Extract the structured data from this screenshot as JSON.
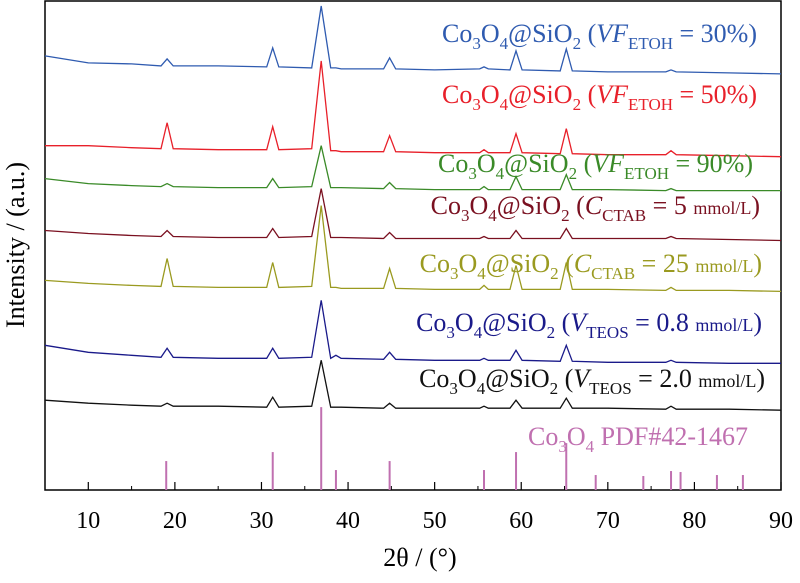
{
  "chart_data": {
    "type": "line",
    "xlabel": "2θ / (°)",
    "ylabel": "Intensity / (a.u.)",
    "xlim": [
      5,
      90
    ],
    "xticks": [
      10,
      20,
      30,
      40,
      50,
      60,
      70,
      80,
      90
    ],
    "xminor": [
      15,
      25,
      35,
      45,
      55,
      65,
      75,
      85
    ],
    "ylim": [
      0,
      490
    ],
    "x": [
      5,
      10,
      15,
      18.4,
      19.1,
      19.8,
      25,
      30.6,
      31.3,
      32,
      35.8,
      36.9,
      38,
      38.6,
      39.2,
      44.1,
      44.8,
      45.5,
      50,
      55.2,
      55.7,
      56.2,
      58.7,
      59.4,
      60.1,
      64.5,
      65.2,
      65.9,
      70,
      76.7,
      77.3,
      77.9,
      84,
      90
    ],
    "series": [
      {
        "name": [
          {
            "text": "Co"
          },
          {
            "text": "3",
            "sub": true
          },
          {
            "text": "O"
          },
          {
            "text": "4",
            "sub": true
          },
          {
            "text": "@SiO"
          },
          {
            "text": "2",
            "sub": true
          },
          {
            "text": " ("
          },
          {
            "text": "VF",
            "italic": true
          },
          {
            "text": "ETOH",
            "sub": true
          },
          {
            "text": " = 30%)"
          }
        ],
        "color": "#2f5bb0",
        "values": [
          435,
          428,
          427,
          425,
          432,
          425,
          425,
          424,
          443,
          424,
          423,
          485,
          423,
          423,
          422,
          422,
          433,
          422,
          421,
          422,
          424,
          422,
          421,
          440,
          421,
          420,
          442,
          420,
          419,
          419,
          421,
          419,
          418,
          417
        ]
      },
      {
        "name": [
          {
            "text": "Co"
          },
          {
            "text": "3",
            "sub": true
          },
          {
            "text": "O"
          },
          {
            "text": "4",
            "sub": true
          },
          {
            "text": "@SiO"
          },
          {
            "text": "2",
            "sub": true
          },
          {
            "text": " ("
          },
          {
            "text": "VF",
            "italic": true
          },
          {
            "text": "ETOH",
            "sub": true
          },
          {
            "text": " = 50%)"
          }
        ],
        "color": "#e8202a",
        "values": [
          345,
          345,
          343,
          342,
          368,
          342,
          341,
          341,
          364,
          341,
          342,
          430,
          340,
          340,
          339,
          339,
          355,
          339,
          338,
          338,
          341,
          338,
          338,
          357,
          338,
          337,
          362,
          337,
          336,
          336,
          340,
          336,
          335,
          334
        ]
      },
      {
        "name": [
          {
            "text": "Co"
          },
          {
            "text": "3",
            "sub": true
          },
          {
            "text": "O"
          },
          {
            "text": "4",
            "sub": true
          },
          {
            "text": "@SiO"
          },
          {
            "text": "2",
            "sub": true
          },
          {
            "text": " ("
          },
          {
            "text": "VF",
            "italic": true
          },
          {
            "text": "ETOH",
            "sub": true
          },
          {
            "text": " = 90%)"
          }
        ],
        "color": "#3a8a28",
        "values": [
          312,
          307,
          305,
          304,
          307,
          304,
          303,
          303,
          312,
          303,
          304,
          345,
          303,
          303,
          303,
          302,
          308,
          302,
          301,
          301,
          304,
          301,
          301,
          314,
          301,
          301,
          316,
          301,
          301,
          300,
          302,
          300,
          300,
          300
        ]
      },
      {
        "name": [
          {
            "text": "Co"
          },
          {
            "text": "3",
            "sub": true
          },
          {
            "text": "O"
          },
          {
            "text": "4",
            "sub": true
          },
          {
            "text": "@SiO"
          },
          {
            "text": "2",
            "sub": true
          },
          {
            "text": " ("
          },
          {
            "text": "C",
            "italic": true
          },
          {
            "text": "CTAB",
            "sub": true
          },
          {
            "text": " = 5 "
          },
          {
            "text": "mmol/L",
            "small": true
          },
          {
            "text": ")"
          }
        ],
        "color": "#7a1020",
        "values": [
          260,
          257,
          255,
          254,
          260,
          254,
          253,
          253,
          262,
          253,
          254,
          302,
          253,
          253,
          253,
          252,
          258,
          252,
          252,
          252,
          254,
          252,
          252,
          260,
          252,
          252,
          262,
          252,
          252,
          252,
          254,
          252,
          251,
          250
        ]
      },
      {
        "name": [
          {
            "text": "Co"
          },
          {
            "text": "3",
            "sub": true
          },
          {
            "text": "O"
          },
          {
            "text": "4",
            "sub": true
          },
          {
            "text": "@SiO"
          },
          {
            "text": "2",
            "sub": true
          },
          {
            "text": " ("
          },
          {
            "text": "C",
            "italic": true
          },
          {
            "text": "CTAB",
            "sub": true
          },
          {
            "text": " = 25 "
          },
          {
            "text": "mmol/L",
            "small": true
          },
          {
            "text": ")"
          }
        ],
        "color": "#9a9a20",
        "values": [
          210,
          207,
          205,
          204,
          232,
          204,
          203,
          203,
          228,
          203,
          204,
          285,
          203,
          203,
          202,
          202,
          222,
          202,
          201,
          201,
          205,
          201,
          201,
          225,
          201,
          201,
          228,
          201,
          201,
          200,
          203,
          200,
          200,
          199
        ]
      },
      {
        "name": [
          {
            "text": "Co"
          },
          {
            "text": "3",
            "sub": true
          },
          {
            "text": "O"
          },
          {
            "text": "4",
            "sub": true
          },
          {
            "text": "@SiO"
          },
          {
            "text": "2",
            "sub": true
          },
          {
            "text": " ("
          },
          {
            "text": "V",
            "italic": true
          },
          {
            "text": "TEOS",
            "sub": true
          },
          {
            "text": " = 0.8 "
          },
          {
            "text": "mmol/L",
            "small": true
          },
          {
            "text": ")"
          }
        ],
        "color": "#1a1a8a",
        "values": [
          145,
          138,
          135,
          133,
          142,
          133,
          132,
          132,
          142,
          132,
          133,
          190,
          132,
          135,
          132,
          131,
          138,
          131,
          130,
          130,
          132,
          130,
          130,
          140,
          130,
          129,
          145,
          129,
          128,
          128,
          130,
          128,
          127,
          127
        ]
      },
      {
        "name": [
          {
            "text": "Co"
          },
          {
            "text": "3",
            "sub": true
          },
          {
            "text": "O"
          },
          {
            "text": "4",
            "sub": true
          },
          {
            "text": "@SiO"
          },
          {
            "text": "2",
            "sub": true
          },
          {
            "text": " ("
          },
          {
            "text": "V",
            "italic": true
          },
          {
            "text": "TEOS",
            "sub": true
          },
          {
            "text": " = 2.0 "
          },
          {
            "text": "mmol/L",
            "small": true
          },
          {
            "text": ")"
          }
        ],
        "color": "#111111",
        "values": [
          90,
          87,
          85,
          84,
          87,
          84,
          84,
          83,
          93,
          83,
          84,
          130,
          83,
          83,
          83,
          82,
          87,
          82,
          82,
          82,
          84,
          82,
          82,
          90,
          82,
          82,
          92,
          82,
          82,
          81,
          84,
          81,
          81,
          80
        ]
      }
    ],
    "reference": {
      "name": [
        {
          "text": "Co"
        },
        {
          "text": "3",
          "sub": true
        },
        {
          "text": "O"
        },
        {
          "text": "4",
          "sub": true
        },
        {
          "text": " PDF#42-1467"
        }
      ],
      "color": "#c070b0",
      "x": [
        19,
        31.3,
        36.9,
        38.6,
        44.8,
        55.7,
        59.4,
        65.2,
        68.6,
        74.1,
        77.3,
        78.4,
        82.6,
        85.6
      ],
      "values": [
        29,
        38,
        83,
        20,
        29,
        20,
        38,
        47,
        15,
        14,
        19,
        18,
        15,
        15
      ]
    }
  }
}
